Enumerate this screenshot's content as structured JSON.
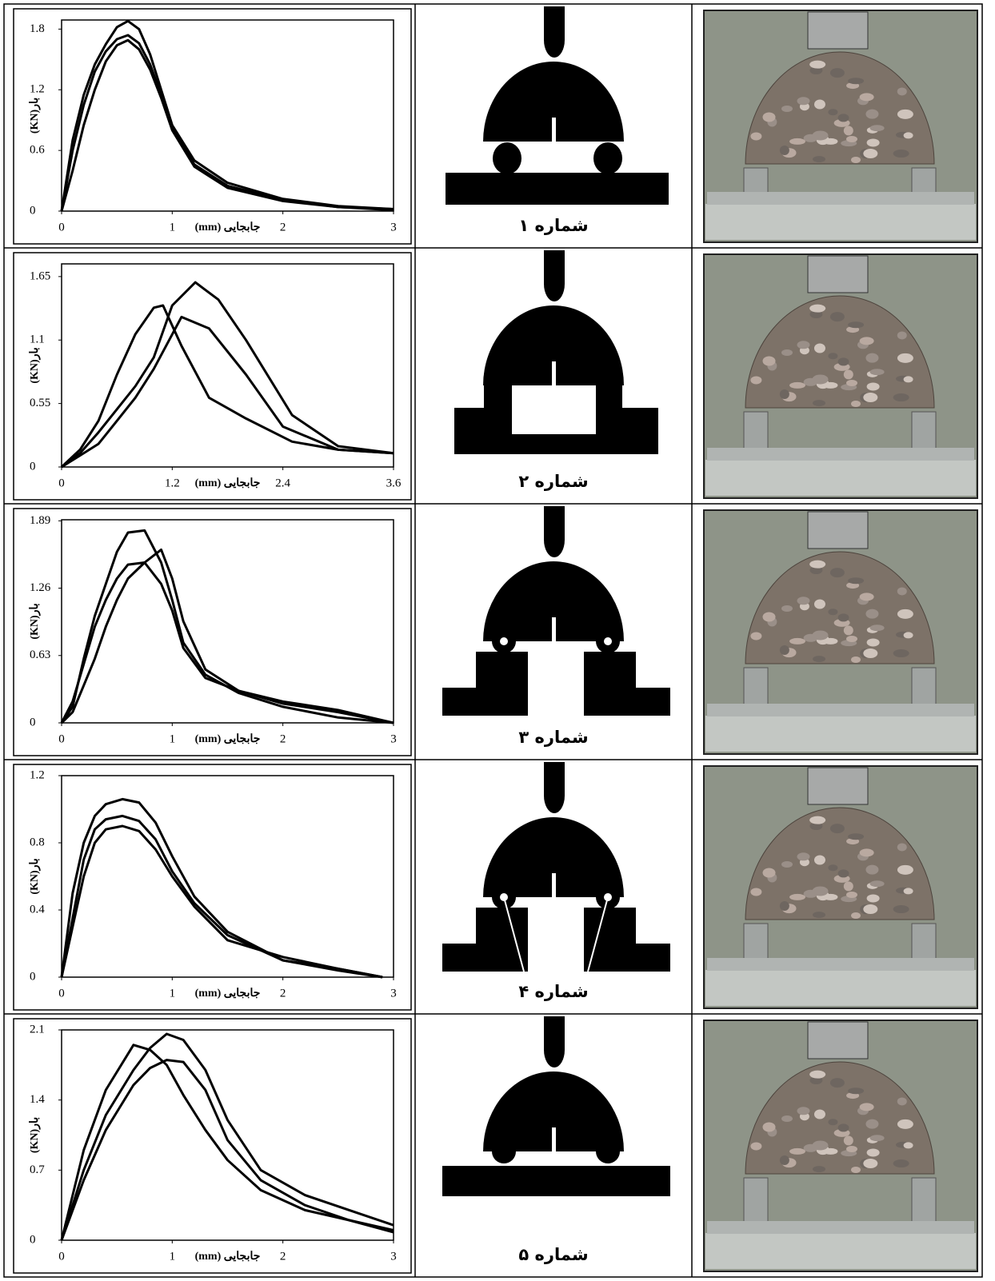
{
  "chart_data": [
    {
      "type": "line",
      "x_label": "جابجایی (mm)",
      "y_label": "بار(KN)",
      "xlim": [
        0,
        3
      ],
      "ylim": [
        0,
        1.89
      ],
      "xticks": [
        0,
        1,
        2,
        3
      ],
      "yticks": [
        0,
        0.6,
        1.2,
        1.8
      ],
      "series": [
        {
          "color": "#000000",
          "x": [
            0,
            0.1,
            0.2,
            0.3,
            0.4,
            0.5,
            0.6,
            0.7,
            0.8,
            0.9,
            1.0,
            1.2,
            1.5,
            2,
            2.5,
            3
          ],
          "values": [
            0,
            0.7,
            1.15,
            1.45,
            1.65,
            1.82,
            1.88,
            1.8,
            1.55,
            1.2,
            0.85,
            0.5,
            0.28,
            0.12,
            0.05,
            0.02
          ]
        },
        {
          "color": "#000000",
          "x": [
            0,
            0.1,
            0.2,
            0.3,
            0.4,
            0.5,
            0.6,
            0.7,
            0.8,
            0.9,
            1.0,
            1.2,
            1.5,
            2,
            2.5,
            3
          ],
          "values": [
            0,
            0.6,
            1.05,
            1.38,
            1.58,
            1.7,
            1.74,
            1.66,
            1.45,
            1.15,
            0.82,
            0.46,
            0.25,
            0.11,
            0.04,
            0.02
          ]
        },
        {
          "color": "#000000",
          "x": [
            0,
            0.1,
            0.2,
            0.3,
            0.4,
            0.5,
            0.6,
            0.7,
            0.8,
            0.9,
            1.0,
            1.2,
            1.5,
            2,
            2.5,
            3
          ],
          "values": [
            0,
            0.4,
            0.85,
            1.2,
            1.48,
            1.64,
            1.69,
            1.6,
            1.4,
            1.12,
            0.8,
            0.44,
            0.23,
            0.1,
            0.04,
            0.01
          ]
        }
      ]
    },
    {
      "type": "line",
      "x_label": "جابجایی (mm)",
      "y_label": "بار(KN)",
      "xlim": [
        0,
        3.6
      ],
      "ylim": [
        0,
        1.76
      ],
      "xticks": [
        0,
        1.2,
        2.4,
        3.6
      ],
      "yticks": [
        0,
        0.55,
        1.1,
        1.65
      ],
      "series": [
        {
          "color": "#000000",
          "x": [
            0,
            0.2,
            0.4,
            0.6,
            0.8,
            1.0,
            1.1,
            1.3,
            1.6,
            2.0,
            2.5,
            3.0,
            3.6
          ],
          "values": [
            0,
            0.15,
            0.4,
            0.8,
            1.15,
            1.38,
            1.4,
            1.05,
            0.6,
            0.42,
            0.22,
            0.15,
            0.12
          ]
        },
        {
          "color": "#000000",
          "x": [
            0,
            0.2,
            0.4,
            0.6,
            0.8,
            1.0,
            1.2,
            1.45,
            1.7,
            2.0,
            2.5,
            3.0,
            3.6
          ],
          "values": [
            0,
            0.12,
            0.3,
            0.5,
            0.7,
            0.95,
            1.4,
            1.6,
            1.45,
            1.1,
            0.45,
            0.18,
            0.12
          ]
        },
        {
          "color": "#000000",
          "x": [
            0,
            0.2,
            0.4,
            0.6,
            0.8,
            1.0,
            1.3,
            1.6,
            2.0,
            2.4,
            3.0,
            3.6
          ],
          "values": [
            0,
            0.1,
            0.2,
            0.4,
            0.6,
            0.85,
            1.3,
            1.2,
            0.8,
            0.35,
            0.15,
            0.12
          ]
        }
      ]
    },
    {
      "type": "line",
      "x_label": "جابجایی (mm)",
      "y_label": "بار(KN)",
      "xlim": [
        0,
        3
      ],
      "ylim": [
        0,
        1.9
      ],
      "xticks": [
        0,
        1,
        2,
        3
      ],
      "yticks": [
        0,
        0.63,
        1.26,
        1.89
      ],
      "series": [
        {
          "color": "#000000",
          "x": [
            0,
            0.1,
            0.2,
            0.3,
            0.4,
            0.5,
            0.6,
            0.75,
            0.9,
            1.0,
            1.1,
            1.3,
            1.6,
            2,
            2.5,
            3
          ],
          "values": [
            0,
            0.15,
            0.6,
            1.0,
            1.3,
            1.6,
            1.78,
            1.8,
            1.5,
            1.15,
            0.75,
            0.45,
            0.28,
            0.15,
            0.05,
            0
          ]
        },
        {
          "color": "#000000",
          "x": [
            0,
            0.1,
            0.2,
            0.3,
            0.4,
            0.5,
            0.6,
            0.75,
            0.9,
            1.0,
            1.1,
            1.3,
            1.6,
            2,
            2.5,
            3
          ],
          "values": [
            0,
            0.1,
            0.35,
            0.6,
            0.9,
            1.15,
            1.35,
            1.5,
            1.62,
            1.35,
            0.95,
            0.5,
            0.3,
            0.18,
            0.1,
            0
          ]
        },
        {
          "color": "#000000",
          "x": [
            0,
            0.1,
            0.2,
            0.3,
            0.4,
            0.5,
            0.6,
            0.75,
            0.9,
            1.0,
            1.1,
            1.3,
            1.6,
            2,
            2.5,
            3
          ],
          "values": [
            0,
            0.2,
            0.55,
            0.9,
            1.15,
            1.35,
            1.48,
            1.5,
            1.3,
            1.05,
            0.7,
            0.42,
            0.3,
            0.2,
            0.12,
            0
          ]
        }
      ]
    },
    {
      "type": "line",
      "x_label": "جابجایی (mm)",
      "y_label": "بار(KN)",
      "xlim": [
        0,
        3
      ],
      "ylim": [
        0,
        1.2
      ],
      "xticks": [
        0,
        1,
        2,
        3
      ],
      "yticks": [
        0,
        0.4,
        0.8,
        1.2
      ],
      "series": [
        {
          "color": "#000000",
          "x": [
            0,
            0.1,
            0.2,
            0.3,
            0.4,
            0.55,
            0.7,
            0.85,
            1.0,
            1.2,
            1.5,
            2.0,
            2.5,
            2.9
          ],
          "values": [
            0,
            0.5,
            0.8,
            0.96,
            1.03,
            1.06,
            1.04,
            0.92,
            0.72,
            0.48,
            0.27,
            0.1,
            0.04,
            0
          ]
        },
        {
          "color": "#000000",
          "x": [
            0,
            0.1,
            0.2,
            0.3,
            0.4,
            0.55,
            0.7,
            0.85,
            1.0,
            1.2,
            1.5,
            2.0,
            2.5,
            2.9
          ],
          "values": [
            0,
            0.35,
            0.7,
            0.88,
            0.94,
            0.96,
            0.93,
            0.82,
            0.63,
            0.44,
            0.25,
            0.1,
            0.05,
            0
          ]
        },
        {
          "color": "#000000",
          "x": [
            0,
            0.1,
            0.2,
            0.3,
            0.4,
            0.55,
            0.7,
            0.85,
            1.0,
            1.2,
            1.5,
            2.0,
            2.5,
            2.9
          ],
          "values": [
            0,
            0.3,
            0.6,
            0.8,
            0.88,
            0.9,
            0.87,
            0.76,
            0.6,
            0.42,
            0.22,
            0.12,
            0.05,
            0
          ]
        }
      ]
    },
    {
      "type": "line",
      "x_label": "جابجایی (mm)",
      "y_label": "بار(KN)",
      "xlim": [
        0,
        3
      ],
      "ylim": [
        0,
        2.1
      ],
      "xticks": [
        0,
        1,
        2,
        3
      ],
      "yticks": [
        0,
        0.7,
        1.4,
        2.1
      ],
      "series": [
        {
          "color": "#000000",
          "x": [
            0,
            0.2,
            0.4,
            0.65,
            0.8,
            0.95,
            1.1,
            1.3,
            1.5,
            1.8,
            2.2,
            2.6,
            3.0
          ],
          "values": [
            0,
            0.9,
            1.5,
            1.95,
            1.9,
            1.75,
            1.45,
            1.1,
            0.8,
            0.5,
            0.3,
            0.2,
            0.1
          ]
        },
        {
          "color": "#000000",
          "x": [
            0,
            0.2,
            0.4,
            0.65,
            0.8,
            0.95,
            1.1,
            1.3,
            1.5,
            1.8,
            2.2,
            2.6,
            3.0
          ],
          "values": [
            0,
            0.7,
            1.25,
            1.7,
            1.92,
            2.06,
            2.0,
            1.7,
            1.2,
            0.7,
            0.45,
            0.3,
            0.15
          ]
        },
        {
          "color": "#000000",
          "x": [
            0,
            0.2,
            0.4,
            0.65,
            0.8,
            0.95,
            1.1,
            1.3,
            1.5,
            1.8,
            2.2,
            2.6,
            3.0
          ],
          "values": [
            0,
            0.6,
            1.1,
            1.55,
            1.72,
            1.8,
            1.78,
            1.5,
            1.0,
            0.6,
            0.35,
            0.2,
            0.08
          ]
        }
      ]
    }
  ],
  "labels": [
    "شماره ۱",
    "شماره ۲",
    "شماره ۳",
    "شماره ۴",
    "شماره ۵"
  ]
}
